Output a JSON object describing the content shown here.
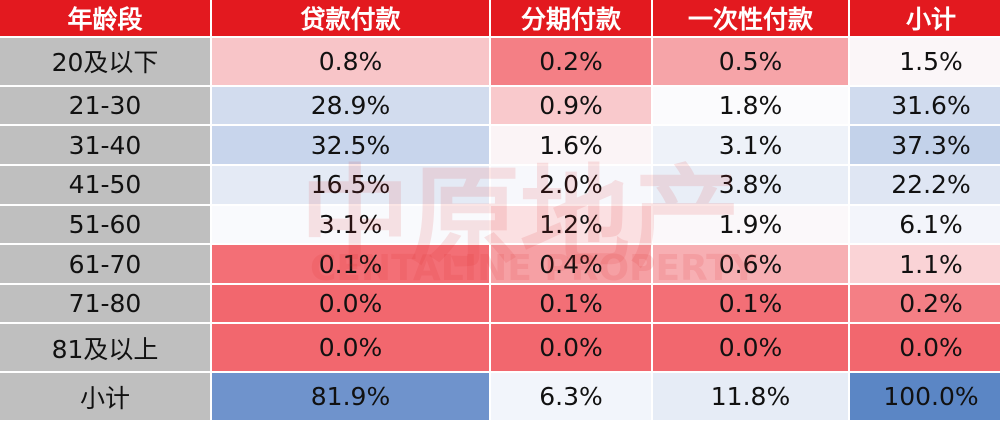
{
  "table": {
    "header": [
      "年龄段",
      "贷款付款",
      "分期付款",
      "一次性付款",
      "小计"
    ],
    "rows": [
      [
        "20及以下",
        "0.8%",
        "0.2%",
        "0.5%",
        "1.5%"
      ],
      [
        "21-30",
        "28.9%",
        "0.9%",
        "1.8%",
        "31.6%"
      ],
      [
        "31-40",
        "32.5%",
        "1.6%",
        "3.1%",
        "37.3%"
      ],
      [
        "41-50",
        "16.5%",
        "2.0%",
        "3.8%",
        "22.2%"
      ],
      [
        "51-60",
        "3.1%",
        "1.2%",
        "1.9%",
        "6.1%"
      ],
      [
        "61-70",
        "0.1%",
        "0.4%",
        "0.6%",
        "1.1%"
      ],
      [
        "71-80",
        "0.0%",
        "0.1%",
        "0.1%",
        "0.2%"
      ],
      [
        "81及以上",
        "0.0%",
        "0.0%",
        "0.0%",
        "0.0%"
      ],
      [
        "小计",
        "81.9%",
        "6.3%",
        "11.8%",
        "100.0%"
      ]
    ],
    "cell_colors": [
      [
        "#f8c5c8",
        "#f47f85",
        "#f6a4a8",
        "#fbf6f8"
      ],
      [
        "#d2dcee",
        "#f9c9cc",
        "#fbfbfd",
        "#d0dbee"
      ],
      [
        "#c8d5ec",
        "#fbf4f6",
        "#eef2f9",
        "#c3d2ea"
      ],
      [
        "#e4eaf5",
        "#f7f8fc",
        "#e9eef7",
        "#dfe6f3"
      ],
      [
        "#f9fafd",
        "#fbe0e2",
        "#fbf8fa",
        "#f3f5fb"
      ],
      [
        "#f36f76",
        "#f6a0a4",
        "#f7afb3",
        "#fad3d6"
      ],
      [
        "#f2676e",
        "#f36f76",
        "#f36f76",
        "#f47f85"
      ],
      [
        "#f2676e",
        "#f2676e",
        "#f2676e",
        "#f2676e"
      ],
      [
        "#6f93cc",
        "#f2f5fb",
        "#e6ecf6",
        "#5b86c5"
      ]
    ]
  },
  "watermark": {
    "brand": "中原地产",
    "brand_en": "CENTALINE PROPERTY"
  }
}
